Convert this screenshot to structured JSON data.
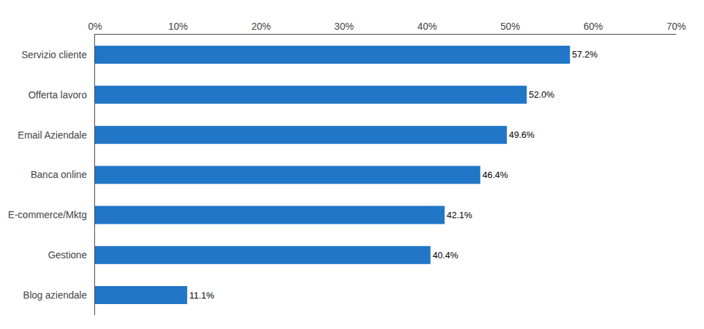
{
  "chart_data": {
    "type": "bar",
    "orientation": "horizontal",
    "categories": [
      "Blog aziendale",
      "Gestione",
      "E-commerce/Mktg",
      "Banca online",
      "Email Aziendale",
      "Offerta lavoro",
      "Servizio cliente"
    ],
    "values": [
      11.1,
      40.4,
      42.1,
      46.4,
      49.6,
      52.0,
      57.2
    ],
    "value_labels": [
      "11.1%",
      "40.4%",
      "42.1%",
      "46.4%",
      "49.6%",
      "52.0%",
      "57.2%"
    ],
    "data_labels": true,
    "color": "#2176C7",
    "xlim": [
      0,
      70
    ],
    "xticks": [
      {
        "value": 0,
        "label": "0%"
      },
      {
        "value": 10,
        "label": "10%"
      },
      {
        "value": 20,
        "label": "20%"
      },
      {
        "value": 30,
        "label": "30%"
      },
      {
        "value": 40,
        "label": "40%"
      },
      {
        "value": 50,
        "label": "50%"
      },
      {
        "value": 60,
        "label": "60%"
      },
      {
        "value": 70,
        "label": "70%"
      }
    ],
    "grid": false
  }
}
